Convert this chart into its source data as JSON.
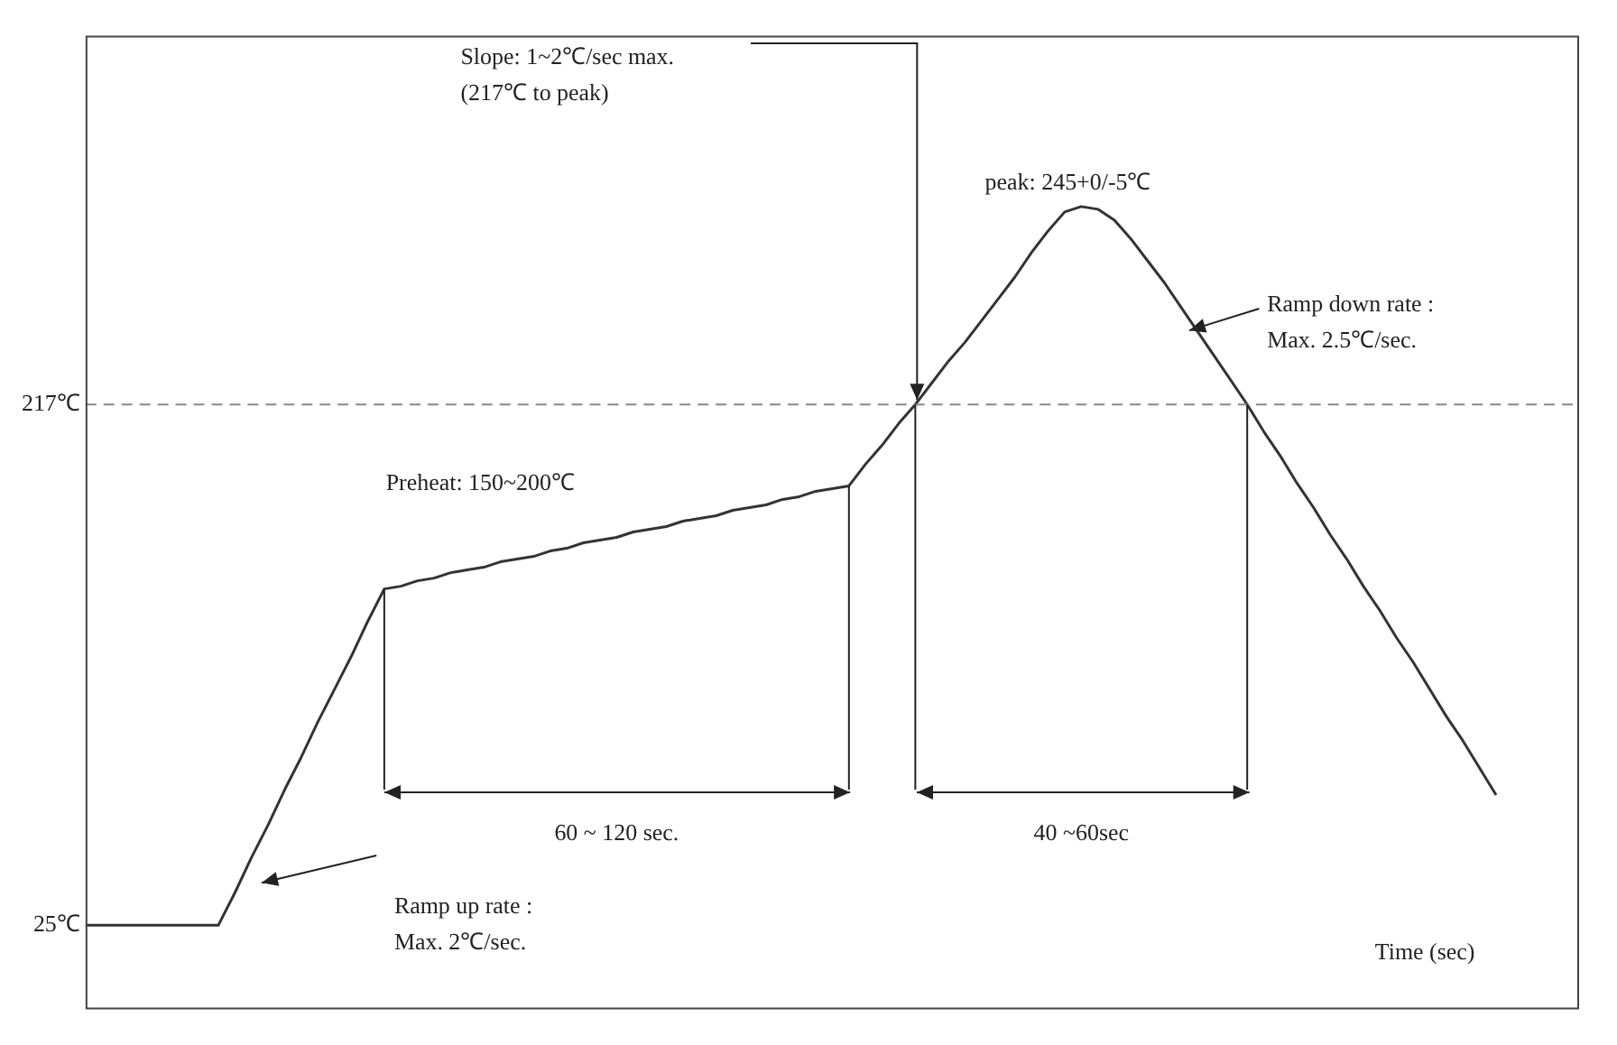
{
  "chart_data": {
    "type": "line",
    "xlabel": "Time (sec)",
    "ylim": [
      -6,
      353
    ],
    "yticks": [
      {
        "value": 25,
        "label": "25℃"
      },
      {
        "value": 217,
        "label": "217℃"
      }
    ],
    "categories": [
      null,
      null,
      null,
      null,
      null,
      null,
      null,
      null,
      null,
      null,
      null,
      null,
      null,
      null,
      null,
      null,
      null,
      null,
      null,
      null,
      null,
      null,
      null,
      null,
      null,
      null,
      null,
      null,
      null,
      null,
      null,
      null,
      null,
      null,
      null,
      null,
      null,
      null,
      null,
      null,
      null,
      null,
      null,
      null,
      null,
      null,
      null,
      null,
      null,
      null,
      null,
      null,
      null,
      null,
      null,
      null,
      null,
      null,
      null,
      null,
      null,
      null,
      null,
      null,
      null,
      null,
      null,
      null,
      null,
      null,
      null,
      null,
      null,
      null,
      null,
      null,
      null,
      null,
      null,
      null,
      null,
      null,
      null,
      null,
      null,
      null,
      null,
      null,
      null,
      null,
      null
    ],
    "series": [
      {
        "color": "#333333",
        "values": [
          25,
          25,
          25,
          25,
          25,
          25,
          25,
          25,
          25,
          37,
          50,
          62,
          75,
          87,
          100,
          112,
          124,
          137,
          149,
          150,
          152,
          153,
          155,
          156,
          157,
          159,
          160,
          161,
          163,
          164,
          166,
          167,
          168,
          170,
          171,
          172,
          174,
          175,
          176,
          178,
          179,
          180,
          182,
          183,
          185,
          186,
          187,
          195,
          202,
          210,
          217,
          225,
          233,
          240,
          248,
          256,
          264,
          273,
          281,
          288,
          290,
          289,
          285,
          278,
          270,
          262,
          253,
          244,
          235,
          226,
          217,
          207,
          198,
          188,
          179,
          169,
          160,
          150,
          141,
          131,
          122,
          112,
          102,
          93,
          83,
          73,
          null,
          null,
          null,
          null,
          null
        ]
      }
    ],
    "legend": false,
    "marker": "none",
    "line_style": "solid",
    "ref_lines": [
      {
        "axis": "y",
        "value": 217,
        "color": "#888888",
        "line_style": "dashed"
      }
    ],
    "annotations": [
      "Slope: 1~2℃/sec max.\n(217℃ to peak)",
      "peak: 245+0/-5℃",
      "Ramp down rate :\nMax. 2.5℃/sec.",
      "Preheat: 150~200℃",
      "60 ~ 120 sec.",
      "40 ~60sec",
      "Ramp up rate :\nMax. 2℃/sec."
    ]
  }
}
